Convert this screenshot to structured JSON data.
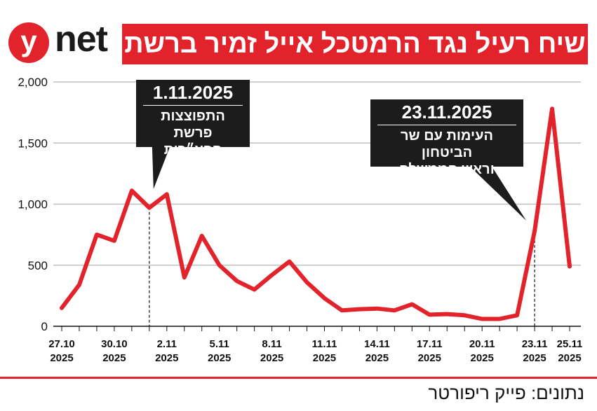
{
  "brand": {
    "logo_letter": "y",
    "logo_text": "net"
  },
  "title": "שיח רעיל נגד הרמטכל אייל זמיר ברשת",
  "source": "נתונים: פייק ריפורטר",
  "colors": {
    "accent": "#e3232c",
    "callout_bg": "#1c1c1c",
    "grid": "#b5b5b5"
  },
  "annotations": [
    {
      "date": "1.11.2025",
      "text_line1": "התפוצצות פרשת",
      "text_line2": "הפצ״רית",
      "x_index": 5
    },
    {
      "date": "23.11.2025",
      "text_line1": "העימות עם שר הביטחון",
      "text_line2": "וראש הממשלה",
      "x_index": 27
    }
  ],
  "chart_data": {
    "type": "line",
    "title": "שיח רעיל נגד הרמטכל אייל זמיר ברשת",
    "xlabel": "",
    "ylabel": "",
    "ylim": [
      0,
      2000
    ],
    "yticks": [
      "0",
      "500",
      "1,000",
      "1,500",
      "2,000"
    ],
    "ytick_values": [
      0,
      500,
      1000,
      1500,
      2000
    ],
    "grid": true,
    "x": [
      "27.10.2025",
      "28.10.2025",
      "29.10.2025",
      "30.10.2025",
      "31.10.2025",
      "1.11.2025",
      "2.11.2025",
      "3.11.2025",
      "4.11.2025",
      "5.11.2025",
      "6.11.2025",
      "7.11.2025",
      "8.11.2025",
      "9.11.2025",
      "10.11.2025",
      "11.11.2025",
      "12.11.2025",
      "13.11.2025",
      "14.11.2025",
      "15.11.2025",
      "16.11.2025",
      "17.11.2025",
      "18.11.2025",
      "19.11.2025",
      "20.11.2025",
      "21.11.2025",
      "22.11.2025",
      "23.11.2025",
      "24.11.2025",
      "25.11.2025"
    ],
    "xtick_labels": [
      {
        "index": 0,
        "line1": "27.10",
        "line2": "2025"
      },
      {
        "index": 3,
        "line1": "30.10",
        "line2": "2025"
      },
      {
        "index": 6,
        "line1": "2.11",
        "line2": "2025"
      },
      {
        "index": 9,
        "line1": "5.11",
        "line2": "2025"
      },
      {
        "index": 12,
        "line1": "8.11",
        "line2": "2025"
      },
      {
        "index": 15,
        "line1": "11.11",
        "line2": "2025"
      },
      {
        "index": 18,
        "line1": "14.11",
        "line2": "2025"
      },
      {
        "index": 21,
        "line1": "17.11",
        "line2": "2025"
      },
      {
        "index": 24,
        "line1": "20.11",
        "line2": "2025"
      },
      {
        "index": 27,
        "line1": "23.11",
        "line2": "2025"
      },
      {
        "index": 29,
        "line1": "25.11",
        "line2": "2025"
      }
    ],
    "series": [
      {
        "values": [
          150,
          340,
          750,
          700,
          1110,
          970,
          1080,
          400,
          740,
          500,
          370,
          300,
          420,
          530,
          360,
          230,
          130,
          140,
          145,
          130,
          180,
          95,
          100,
          90,
          60,
          60,
          90,
          780,
          1780,
          490
        ]
      }
    ]
  }
}
